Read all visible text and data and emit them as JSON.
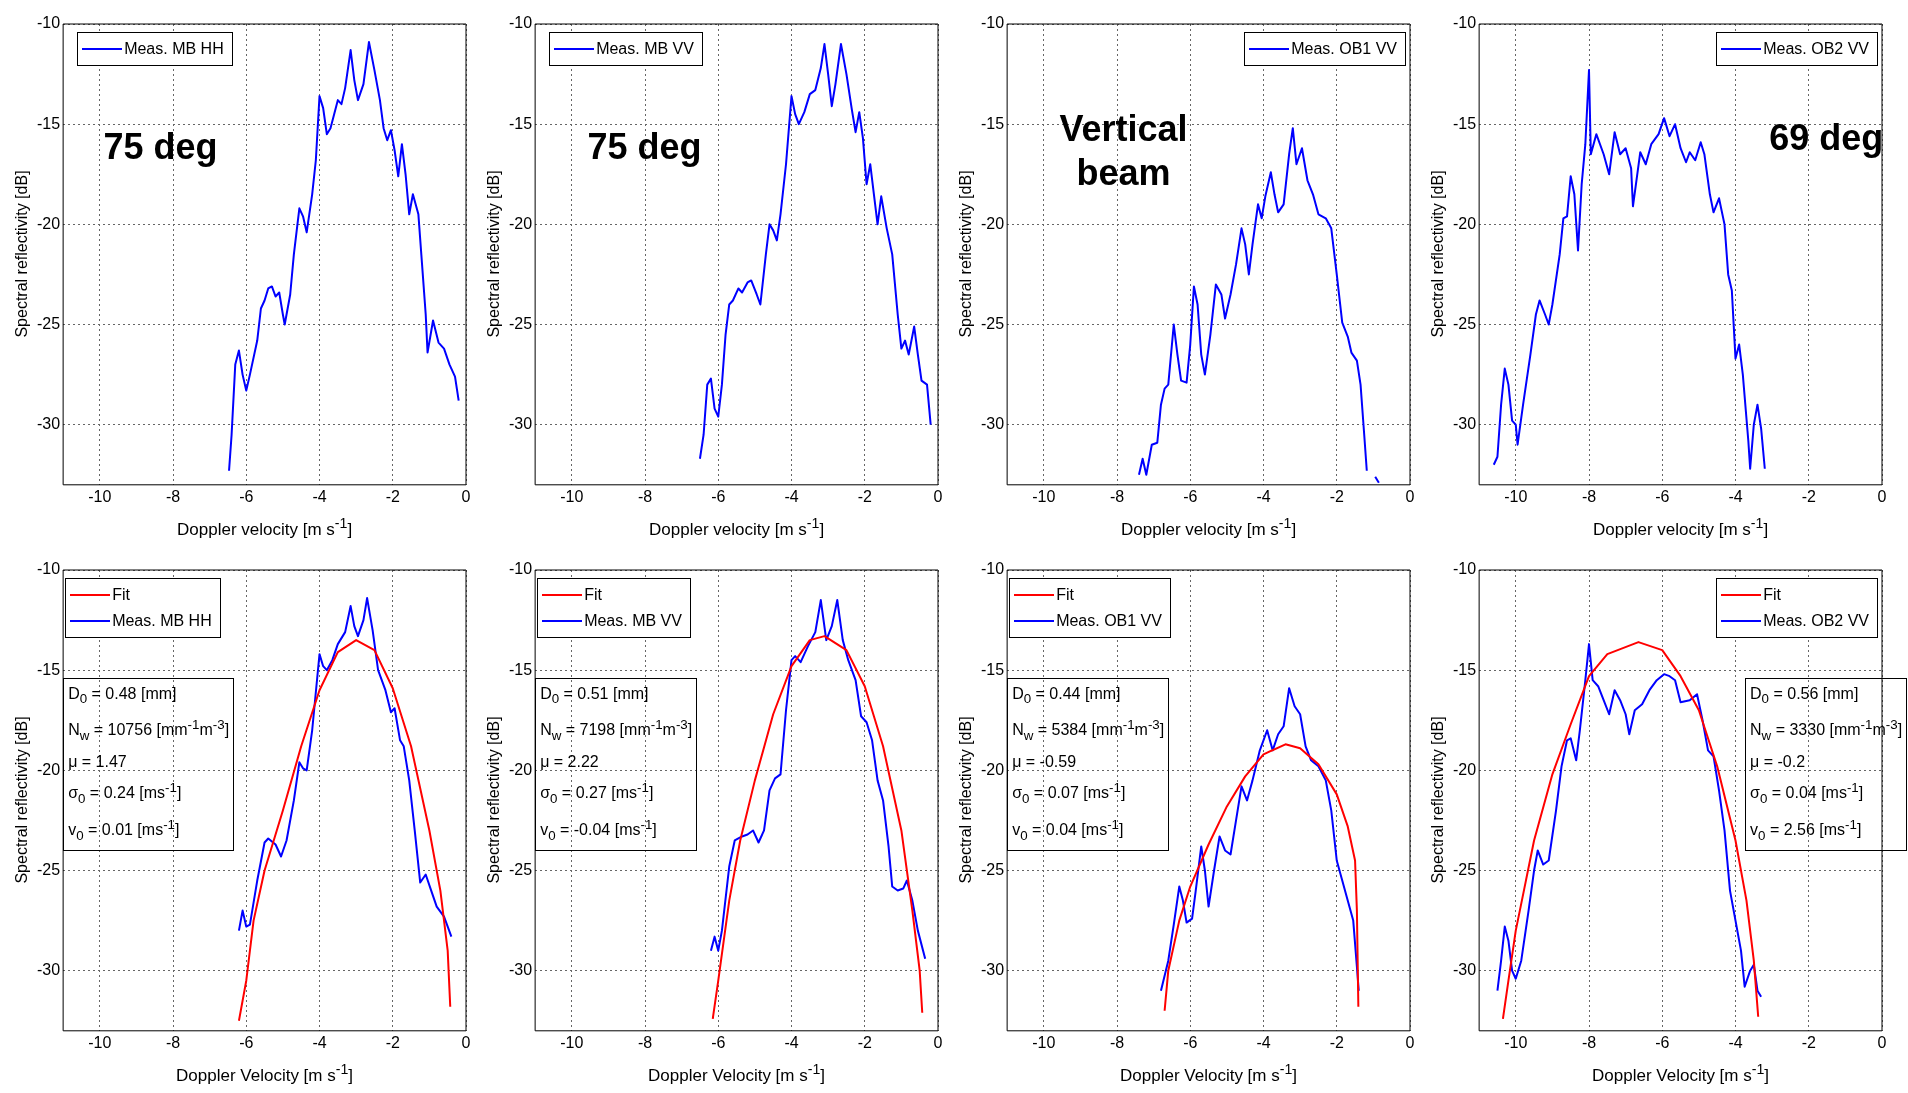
{
  "chart_data": [
    {
      "type": "line",
      "xlabel": "Doppler velocity [m s$^{-1}$]",
      "ylabel": "Spectral reflectivity [dB]",
      "xlim": [
        -11,
        0
      ],
      "ylim": [
        -33,
        -10
      ],
      "xticks": [
        -10,
        -8,
        -6,
        -4,
        -2,
        0
      ],
      "yticks": [
        -30,
        -25,
        -20,
        -15,
        -10
      ],
      "grid": true,
      "legend": "top left",
      "marker": "none",
      "annotations": [
        "75 deg"
      ],
      "series": [
        {
          "name": "Meas. MB HH",
          "color": "#0000ff",
          "x": [
            -6.47,
            -6.4,
            -6.3,
            -6.2,
            -6.1,
            -6.0,
            -5.9,
            -5.7,
            -5.6,
            -5.5,
            -5.4,
            -5.3,
            -5.2,
            -5.1,
            -5.0,
            -4.95,
            -4.8,
            -4.7,
            -4.55,
            -4.45,
            -4.35,
            -4.2,
            -4.1,
            -4.0,
            -3.9,
            -3.8,
            -3.7,
            -3.6,
            -3.5,
            -3.4,
            -3.3,
            -3.15,
            -3.05,
            -2.95,
            -2.8,
            -2.65,
            -2.5,
            -2.35,
            -2.25,
            -2.15,
            -2.05,
            -1.95,
            -1.85,
            -1.75,
            -1.65,
            -1.55,
            -1.45,
            -1.3,
            -1.2,
            -1.1,
            -1.05,
            -0.9,
            -0.75,
            -0.6,
            -0.45,
            -0.3,
            -0.2
          ],
          "values": [
            -32.3,
            -30.5,
            -27,
            -26.3,
            -27.5,
            -28.3,
            -27.5,
            -25.8,
            -24.2,
            -23.8,
            -23.2,
            -23.1,
            -23.6,
            -23.4,
            -24.5,
            -25,
            -23.5,
            -21.5,
            -19.2,
            -19.6,
            -20.4,
            -18.5,
            -16.8,
            -13.6,
            -14.2,
            -15.5,
            -15.2,
            -14.5,
            -13.8,
            -14,
            -13.2,
            -11.3,
            -12.8,
            -13.8,
            -13,
            -10.9,
            -12.3,
            -13.8,
            -15.2,
            -15.8,
            -15.3,
            -16.3,
            -17.6,
            -16,
            -17.5,
            -19.5,
            -18.5,
            -19.5,
            -22,
            -24.5,
            -26.4,
            -24.8,
            -25.9,
            -26.2,
            -27,
            -27.6,
            -28.8
          ]
        }
      ]
    },
    {
      "type": "line",
      "xlabel": "Doppler velocity [m s$^{-1}$]",
      "ylabel": "Spectral reflectivity [dB]",
      "xlim": [
        -11,
        0
      ],
      "ylim": [
        -33,
        -10
      ],
      "xticks": [
        -10,
        -8,
        -6,
        -4,
        -2,
        0
      ],
      "yticks": [
        -30,
        -25,
        -20,
        -15,
        -10
      ],
      "grid": true,
      "legend": "top left",
      "marker": "none",
      "annotations": [
        "75 deg"
      ],
      "series": [
        {
          "name": "Meas. MB VV",
          "color": "#0000ff",
          "x": [
            -6.5,
            -6.4,
            -6.3,
            -6.2,
            -6.1,
            -6.0,
            -5.9,
            -5.8,
            -5.7,
            -5.6,
            -5.45,
            -5.35,
            -5.2,
            -5.1,
            -4.95,
            -4.85,
            -4.7,
            -4.6,
            -4.5,
            -4.4,
            -4.3,
            -4.15,
            -4.0,
            -3.9,
            -3.8,
            -3.65,
            -3.5,
            -3.35,
            -3.2,
            -3.1,
            -3.0,
            -2.9,
            -2.8,
            -2.65,
            -2.5,
            -2.35,
            -2.25,
            -2.15,
            -2.05,
            -1.95,
            -1.85,
            -1.75,
            -1.65,
            -1.55,
            -1.4,
            -1.25,
            -1.1,
            -1.0,
            -0.9,
            -0.8,
            -0.65,
            -0.55,
            -0.45,
            -0.3,
            -0.2
          ],
          "values": [
            -31.7,
            -30.5,
            -28,
            -27.7,
            -29.2,
            -29.6,
            -28,
            -25.5,
            -24,
            -23.8,
            -23.2,
            -23.4,
            -22.9,
            -22.8,
            -23.5,
            -24,
            -21.5,
            -20,
            -20.3,
            -20.8,
            -19.5,
            -17,
            -13.6,
            -14.5,
            -15,
            -14.4,
            -13.5,
            -13.3,
            -12.2,
            -11,
            -12.5,
            -14.1,
            -13,
            -11,
            -12.5,
            -14.3,
            -15.4,
            -14.4,
            -15.7,
            -18,
            -17,
            -18.5,
            -20,
            -18.6,
            -20.2,
            -21.5,
            -24.5,
            -26.2,
            -25.8,
            -26.5,
            -25.1,
            -26.5,
            -27.8,
            -28,
            -30
          ]
        }
      ]
    },
    {
      "type": "line",
      "xlabel": "Doppler velocity [m s$^{-1}$]",
      "ylabel": "Spectral reflectivity [dB]",
      "xlim": [
        -11,
        0
      ],
      "ylim": [
        -33,
        -10
      ],
      "xticks": [
        -10,
        -8,
        -6,
        -4,
        -2,
        0
      ],
      "yticks": [
        -30,
        -25,
        -20,
        -15,
        -10
      ],
      "grid": true,
      "legend": "top right",
      "marker": "none",
      "annotations": [
        "Vertical\nbeam"
      ],
      "series": [
        {
          "name": "Meas. OB1 VV",
          "color": "#0000ff",
          "x": [
            -7.4,
            -7.3,
            -7.2,
            -7.05,
            -6.9,
            -6.8,
            -6.7,
            -6.6,
            -6.45,
            -6.35,
            -6.25,
            -6.1,
            -6.0,
            -5.9,
            -5.8,
            -5.7,
            -5.6,
            -5.45,
            -5.3,
            -5.15,
            -5.05,
            -4.9,
            -4.75,
            -4.6,
            -4.5,
            -4.4,
            -4.3,
            -4.15,
            -4.05,
            -3.95,
            -3.8,
            -3.7,
            -3.6,
            -3.45,
            -3.3,
            -3.2,
            -3.1,
            -2.95,
            -2.8,
            -2.65,
            -2.5,
            -2.3,
            -2.15,
            -2.0,
            -1.85,
            -1.7,
            -1.6,
            -1.45,
            -1.35,
            -1.25,
            -1.18
          ],
          "values": [
            -32.5,
            -31.7,
            -32.5,
            -31,
            -30.9,
            -29,
            -28.2,
            -28,
            -25,
            -26.5,
            -27.8,
            -27.9,
            -26,
            -23.1,
            -24,
            -26.5,
            -27.5,
            -25.5,
            -23,
            -23.5,
            -24.7,
            -23.5,
            -22,
            -20.2,
            -21,
            -22.5,
            -21,
            -19,
            -19.7,
            -18.6,
            -17.4,
            -18.5,
            -19.4,
            -19,
            -16.5,
            -15.2,
            -17,
            -16.2,
            -17.8,
            -18.5,
            -19.5,
            -19.7,
            -20.2,
            -22.5,
            -24.9,
            -25.6,
            -26.4,
            -26.8,
            -28,
            -30.5,
            -32.3
          ]
        },
        {
          "color": "#0000ff",
          "x": [
            -0.95,
            -0.85
          ],
          "values": [
            -32.6,
            -32.9
          ]
        }
      ]
    },
    {
      "type": "line",
      "xlabel": "Doppler velocity [m s$^{-1}$]",
      "ylabel": "Spectral reflectivity [dB]",
      "xlim": [
        -11,
        0
      ],
      "ylim": [
        -33,
        -10
      ],
      "xticks": [
        -10,
        -8,
        -6,
        -4,
        -2,
        0
      ],
      "yticks": [
        -30,
        -25,
        -20,
        -15,
        -10
      ],
      "grid": true,
      "legend": "top right",
      "marker": "none",
      "annotations": [
        "69 deg"
      ],
      "series": [
        {
          "name": "Meas. OB2 VV",
          "color": "#0000ff",
          "x": [
            -10.6,
            -10.5,
            -10.4,
            -10.3,
            -10.2,
            -10.1,
            -10.0,
            -9.95,
            -9.8,
            -9.6,
            -9.45,
            -9.35,
            -9.2,
            -9.1,
            -9.0,
            -8.8,
            -8.7,
            -8.6,
            -8.5,
            -8.4,
            -8.3,
            -8.2,
            -8.1,
            -8.0,
            -7.95,
            -7.8,
            -7.6,
            -7.45,
            -7.3,
            -7.15,
            -7.0,
            -6.85,
            -6.8,
            -6.6,
            -6.45,
            -6.3,
            -6.1,
            -5.95,
            -5.8,
            -5.65,
            -5.5,
            -5.35,
            -5.25,
            -5.1,
            -4.95,
            -4.85,
            -4.7,
            -4.6,
            -4.45,
            -4.3,
            -4.2,
            -4.1,
            -4.0,
            -3.9,
            -3.8,
            -3.65,
            -3.6,
            -3.5,
            -3.4,
            -3.3,
            -3.2
          ],
          "values": [
            -32,
            -31.6,
            -29,
            -27.2,
            -28,
            -29.8,
            -30,
            -31,
            -29,
            -26.5,
            -24.5,
            -23.8,
            -24.5,
            -25,
            -24,
            -21.5,
            -19.7,
            -19.6,
            -17.6,
            -18.5,
            -21.3,
            -18,
            -16,
            -12.3,
            -16.5,
            -15.5,
            -16.5,
            -17.5,
            -15.4,
            -16.5,
            -16.2,
            -17.2,
            -19.1,
            -16.4,
            -17,
            -16,
            -15.5,
            -14.7,
            -15.6,
            -15,
            -16.2,
            -16.9,
            -16.4,
            -16.8,
            -15.9,
            -16.5,
            -18.5,
            -19.4,
            -18.7,
            -20,
            -22.5,
            -23.3,
            -26.7,
            -26,
            -27.5,
            -30.8,
            -32.2,
            -30,
            -29,
            -30.2,
            -32.2
          ]
        }
      ]
    },
    {
      "type": "line",
      "xlabel": "Doppler Velocity [m s$^{-1}$]",
      "ylabel": "Spectral reflectivity [dB]",
      "xlim": [
        -11,
        0
      ],
      "ylim": [
        -33,
        -10
      ],
      "xticks": [
        -10,
        -8,
        -6,
        -4,
        -2,
        0
      ],
      "yticks": [
        -30,
        -25,
        -20,
        -15,
        -10
      ],
      "grid": true,
      "legend": "top left",
      "marker": "none",
      "annotations": [
        "D$_{0}$ = 0.48 [mm]\nN$_{w}$ = 10756 [mm$^{-1}$m$^{-3}$]\nμ = 1.47\nσ$_{0}$ = 0.24 [ms$^{-1}$]\nv$_{0}$ = 0.01 [ms$^{-1}$]"
      ],
      "series": [
        {
          "name": "Fit",
          "color": "#ff0000",
          "x": [
            -6.2,
            -6.0,
            -5.8,
            -5.5,
            -5.0,
            -4.5,
            -4.0,
            -3.5,
            -3.0,
            -2.5,
            -2.0,
            -1.5,
            -1.0,
            -0.7,
            -0.5,
            -0.43
          ],
          "values": [
            -32.5,
            -30.5,
            -27.5,
            -25,
            -22,
            -18.8,
            -16,
            -14.1,
            -13.5,
            -14,
            -15.9,
            -18.8,
            -23,
            -26,
            -29,
            -31.8
          ]
        },
        {
          "name": "Meas. MB HH",
          "color": "#0000ff",
          "x": [
            -6.2,
            -6.1,
            -6.0,
            -5.9,
            -5.7,
            -5.5,
            -5.4,
            -5.2,
            -5.05,
            -4.9,
            -4.7,
            -4.55,
            -4.45,
            -4.35,
            -4.2,
            -4.0,
            -3.9,
            -3.8,
            -3.65,
            -3.5,
            -3.3,
            -3.15,
            -3.05,
            -2.95,
            -2.8,
            -2.7,
            -2.55,
            -2.4,
            -2.2,
            -2.05,
            -1.95,
            -1.8,
            -1.7,
            -1.55,
            -1.4,
            -1.25,
            -1.1,
            -0.95,
            -0.8,
            -0.6,
            -0.4
          ],
          "values": [
            -28,
            -27,
            -27.8,
            -27.7,
            -25.5,
            -23.6,
            -23.4,
            -23.7,
            -24.3,
            -23.5,
            -21.5,
            -19.6,
            -19.9,
            -20,
            -18,
            -14.2,
            -14.8,
            -15,
            -14.5,
            -13.7,
            -13.1,
            -11.8,
            -12.8,
            -13.3,
            -12.5,
            -11.4,
            -13,
            -15,
            -16,
            -17.1,
            -16.9,
            -18.5,
            -18.8,
            -20.5,
            -23,
            -25.6,
            -25.2,
            -26,
            -26.8,
            -27.3,
            -28.3
          ]
        }
      ]
    },
    {
      "type": "line",
      "xlabel": "Doppler Velocity [m s$^{-1}$]",
      "ylabel": "Spectral reflectivity [dB]",
      "xlim": [
        -11,
        0
      ],
      "ylim": [
        -33,
        -10
      ],
      "xticks": [
        -10,
        -8,
        -6,
        -4,
        -2,
        0
      ],
      "yticks": [
        -30,
        -25,
        -20,
        -15,
        -10
      ],
      "grid": true,
      "legend": "top left",
      "marker": "none",
      "annotations": [
        "D$_{0}$ = 0.51 [mm]\nN$_{w}$ = 7198 [mm$^{-1}$m$^{-3}$]\nμ = 2.22\nσ$_{0}$ = 0.27 [ms$^{-1}$]\nv$_{0}$ = -0.04 [ms$^{-1}$]"
      ],
      "series": [
        {
          "name": "Fit",
          "color": "#ff0000",
          "x": [
            -6.15,
            -6.0,
            -5.7,
            -5.4,
            -5.0,
            -4.5,
            -4.0,
            -3.5,
            -3.1,
            -2.5,
            -2.0,
            -1.5,
            -1.0,
            -0.7,
            -0.5,
            -0.43
          ],
          "values": [
            -32.4,
            -30.5,
            -26.5,
            -23.5,
            -20.5,
            -17.2,
            -14.8,
            -13.5,
            -13.3,
            -14,
            -15.8,
            -18.8,
            -23,
            -27,
            -30,
            -32.1
          ]
        },
        {
          "name": "Meas. MB VV",
          "color": "#0000ff",
          "x": [
            -6.2,
            -6.1,
            -6.0,
            -5.9,
            -5.7,
            -5.55,
            -5.35,
            -5.2,
            -5.05,
            -4.9,
            -4.75,
            -4.6,
            -4.45,
            -4.3,
            -4.15,
            -4.0,
            -3.9,
            -3.75,
            -3.55,
            -3.35,
            -3.2,
            -3.05,
            -2.9,
            -2.75,
            -2.6,
            -2.45,
            -2.25,
            -2.1,
            -1.95,
            -1.8,
            -1.65,
            -1.5,
            -1.35,
            -1.25,
            -1.1,
            -0.95,
            -0.85,
            -0.7,
            -0.55,
            -0.35
          ],
          "values": [
            -29,
            -28.3,
            -29,
            -28,
            -24.8,
            -23.5,
            -23.3,
            -23.2,
            -23,
            -23.6,
            -23,
            -21,
            -20.4,
            -20.2,
            -17,
            -14.5,
            -14.3,
            -14.6,
            -13.8,
            -13.1,
            -11.5,
            -13.5,
            -12.8,
            -11.5,
            -13.5,
            -14.5,
            -15.5,
            -17.3,
            -17.6,
            -18.5,
            -20.5,
            -21.5,
            -23.8,
            -25.8,
            -26,
            -25.9,
            -25.5,
            -26.5,
            -28,
            -29.4
          ]
        }
      ]
    },
    {
      "type": "line",
      "xlabel": "Doppler Velocity [m s$^{-1}$]",
      "ylabel": "Spectral reflectivity [dB]",
      "xlim": [
        -11,
        0
      ],
      "ylim": [
        -33,
        -10
      ],
      "xticks": [
        -10,
        -8,
        -6,
        -4,
        -2,
        0
      ],
      "yticks": [
        -30,
        -25,
        -20,
        -15,
        -10
      ],
      "grid": true,
      "legend": "top left",
      "marker": "none",
      "annotations": [
        "D$_{0}$ = 0.44 [mm]\nN$_{w}$ = 5384 [mm$^{-1}$m$^{-3}$]\nμ = -0.59\nσ$_{0}$ = 0.07 [ms$^{-1}$]\nv$_{0}$ = 0.04 [ms$^{-1}$]"
      ],
      "series": [
        {
          "name": "Fit",
          "color": "#ff0000",
          "x": [
            -6.7,
            -6.6,
            -6.3,
            -6.0,
            -5.5,
            -5.0,
            -4.5,
            -4.0,
            -3.4,
            -3.0,
            -2.5,
            -2.0,
            -1.7,
            -1.5,
            -1.45,
            -1.41
          ],
          "values": [
            -32,
            -30,
            -27.5,
            -25.8,
            -23.7,
            -21.8,
            -20.3,
            -19.2,
            -18.7,
            -18.9,
            -19.7,
            -21.2,
            -22.8,
            -24.5,
            -27,
            -31.8
          ]
        },
        {
          "name": "Meas. OB1 VV",
          "color": "#0000ff",
          "x": [
            -6.8,
            -6.6,
            -6.45,
            -6.3,
            -6.2,
            -6.1,
            -5.95,
            -5.85,
            -5.7,
            -5.6,
            -5.5,
            -5.35,
            -5.2,
            -5.05,
            -4.9,
            -4.75,
            -4.6,
            -4.45,
            -4.3,
            -4.1,
            -3.9,
            -3.75,
            -3.6,
            -3.45,
            -3.3,
            -3.15,
            -3.0,
            -2.85,
            -2.7,
            -2.5,
            -2.3,
            -2.15,
            -2.0,
            -1.85,
            -1.7,
            -1.55,
            -1.45,
            -1.4
          ],
          "values": [
            -31,
            -29.5,
            -27.7,
            -25.8,
            -26.5,
            -27.6,
            -27.4,
            -26,
            -23.8,
            -25,
            -26.8,
            -25,
            -23.3,
            -24,
            -24.2,
            -22.5,
            -20.8,
            -21.5,
            -20.5,
            -19,
            -18,
            -19,
            -18.2,
            -17.8,
            -15.9,
            -16.8,
            -17.2,
            -18.8,
            -19.5,
            -19.8,
            -20.5,
            -22,
            -24.5,
            -25.5,
            -26.5,
            -27.5,
            -29.8,
            -31
          ]
        }
      ]
    },
    {
      "type": "line",
      "xlabel": "Doppler Velocity [m s$^{-1}$]",
      "ylabel": "Spectral reflectivity [dB]",
      "xlim": [
        -11,
        0
      ],
      "ylim": [
        -33,
        -10
      ],
      "xticks": [
        -10,
        -8,
        -6,
        -4,
        -2,
        0
      ],
      "yticks": [
        -30,
        -25,
        -20,
        -15,
        -10
      ],
      "grid": true,
      "legend": "top right",
      "marker": "none",
      "annotations": [
        "D$_{0}$ = 0.56 [mm]\nN$_{w}$ = 3330 [mm$^{-1}$m$^{-3}$]\nμ = -0.2\nσ$_{0}$ = 0.04 [ms$^{-1}$]\nv$_{0}$ = 2.56 [ms$^{-1}$]"
      ],
      "series": [
        {
          "name": "Fit",
          "color": "#ff0000",
          "x": [
            -10.35,
            -10.2,
            -10.0,
            -9.5,
            -9.0,
            -8.5,
            -8.0,
            -7.5,
            -6.65,
            -6.0,
            -5.5,
            -5.0,
            -4.5,
            -4.0,
            -3.7,
            -3.5,
            -3.38
          ],
          "values": [
            -32.4,
            -30.5,
            -28,
            -23.5,
            -20.2,
            -17.7,
            -15.3,
            -14.2,
            -13.6,
            -14,
            -15.3,
            -17,
            -19.8,
            -23.5,
            -26.5,
            -29.5,
            -32.3
          ]
        },
        {
          "name": "Meas. OB2 VV",
          "color": "#0000ff",
          "x": [
            -10.5,
            -10.4,
            -10.3,
            -10.2,
            -10.1,
            -10.0,
            -9.85,
            -9.65,
            -9.5,
            -9.4,
            -9.25,
            -9.1,
            -8.9,
            -8.75,
            -8.6,
            -8.5,
            -8.35,
            -8.25,
            -8.1,
            -8.0,
            -7.9,
            -7.75,
            -7.6,
            -7.45,
            -7.3,
            -7.15,
            -7.0,
            -6.9,
            -6.75,
            -6.55,
            -6.35,
            -6.15,
            -5.95,
            -5.8,
            -5.65,
            -5.5,
            -5.25,
            -5.05,
            -4.9,
            -4.75,
            -4.6,
            -4.45,
            -4.3,
            -4.15,
            -4.0,
            -3.85,
            -3.75,
            -3.6,
            -3.5,
            -3.4,
            -3.3
          ],
          "values": [
            -31,
            -29.5,
            -27.8,
            -28.5,
            -30,
            -30.4,
            -29.5,
            -27,
            -25,
            -24,
            -24.7,
            -24.5,
            -22,
            -19.8,
            -18.5,
            -18.4,
            -19.5,
            -18,
            -15.5,
            -13.7,
            -15.5,
            -15.8,
            -16.5,
            -17.2,
            -16,
            -16.5,
            -17.2,
            -18.2,
            -17,
            -16.7,
            -16,
            -15.5,
            -15.2,
            -15.3,
            -15.5,
            -16.6,
            -16.5,
            -16.2,
            -17.5,
            -19,
            -19.3,
            -21,
            -23,
            -26,
            -27.5,
            -29,
            -30.8,
            -30,
            -29.7,
            -31,
            -31.3
          ]
        }
      ]
    }
  ]
}
